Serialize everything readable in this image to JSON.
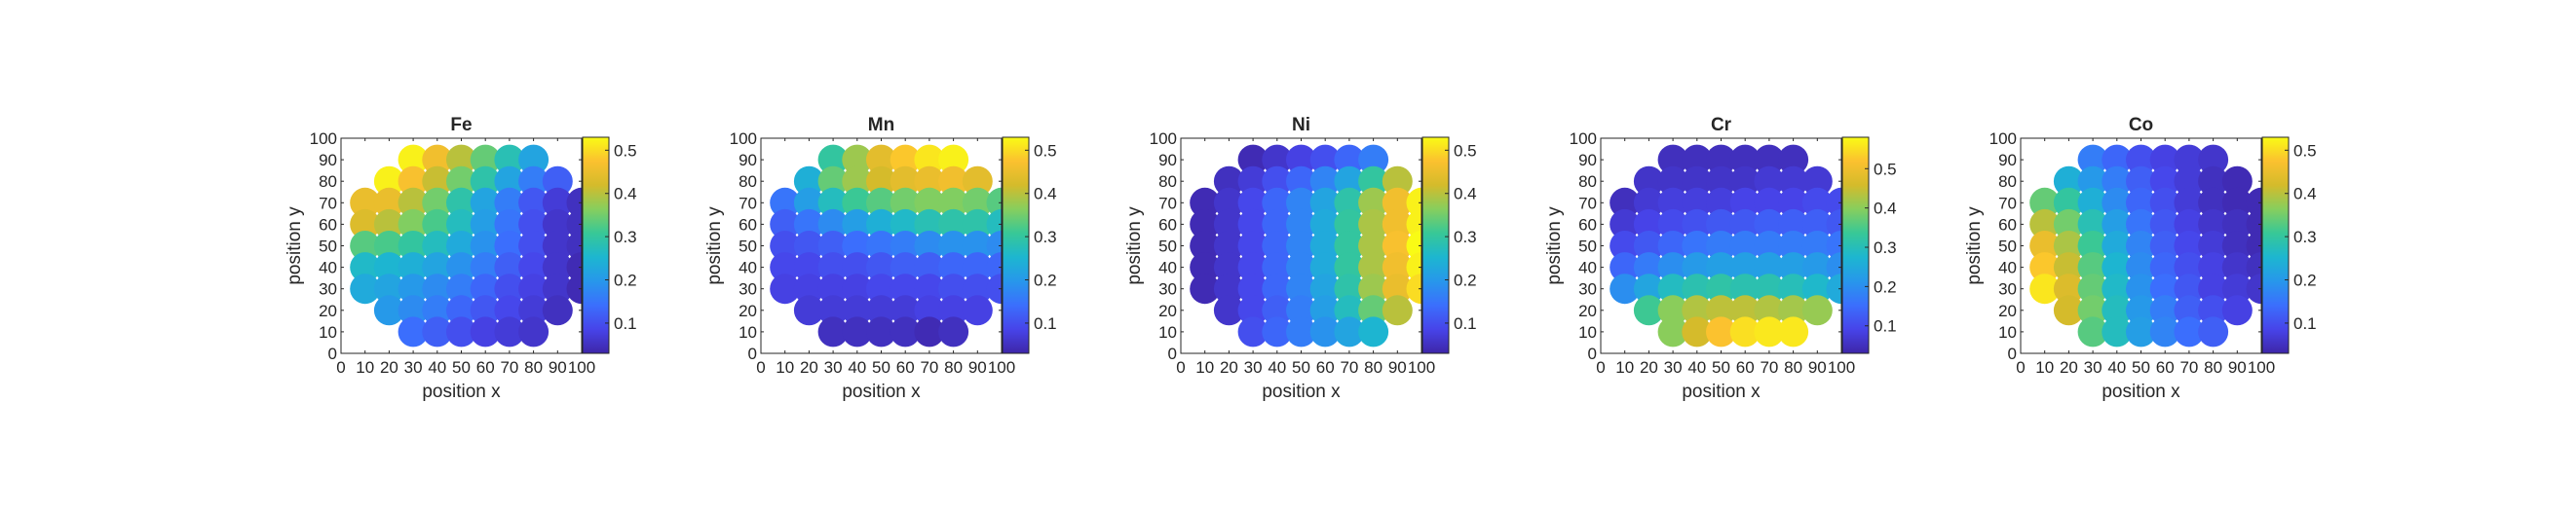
{
  "colormap": [
    "#3e26a8",
    "#4744e9",
    "#3b6ffd",
    "#2797eb",
    "#1db6d0",
    "#37c897",
    "#86ce5e",
    "#d4bb2b",
    "#fbc12f",
    "#f9fb15"
  ],
  "chart_data": [
    {
      "type": "scatter",
      "title": "Fe",
      "xlabel": "position x",
      "ylabel": "position y",
      "xlim": [
        0,
        100
      ],
      "ylim": [
        0,
        100
      ],
      "xticks": [
        "0",
        "10",
        "20",
        "30",
        "40",
        "50",
        "60",
        "70",
        "80",
        "90",
        "100"
      ],
      "yticks": [
        "0",
        "10",
        "20",
        "30",
        "40",
        "50",
        "60",
        "70",
        "80",
        "90",
        "100"
      ],
      "colorbar": {
        "ticks": [
          "0.1",
          "0.2",
          "0.3",
          "0.4",
          "0.5"
        ],
        "range": [
          0.03,
          0.53
        ]
      },
      "rows": [
        {
          "y": 90,
          "x_start": 30,
          "values": [
            0.52,
            0.46,
            0.4,
            0.34,
            0.28,
            0.22
          ]
        },
        {
          "y": 80,
          "x_start": 20,
          "values": [
            0.52,
            0.47,
            0.41,
            0.35,
            0.29,
            0.22,
            0.16,
            0.12
          ]
        },
        {
          "y": 70,
          "x_start": 10,
          "values": [
            0.45,
            0.45,
            0.4,
            0.35,
            0.29,
            0.22,
            0.16,
            0.11,
            0.07,
            0.05
          ]
        },
        {
          "y": 60,
          "x_start": 10,
          "values": [
            0.43,
            0.4,
            0.36,
            0.32,
            0.27,
            0.21,
            0.15,
            0.1,
            0.06,
            0.05
          ]
        },
        {
          "y": 50,
          "x_start": 10,
          "values": [
            0.33,
            0.32,
            0.3,
            0.27,
            0.23,
            0.19,
            0.14,
            0.1,
            0.06,
            0.05
          ]
        },
        {
          "y": 40,
          "x_start": 10,
          "values": [
            0.26,
            0.25,
            0.24,
            0.22,
            0.19,
            0.16,
            0.12,
            0.09,
            0.06,
            0.04
          ]
        },
        {
          "y": 30,
          "x_start": 10,
          "values": [
            0.23,
            0.22,
            0.2,
            0.18,
            0.16,
            0.13,
            0.1,
            0.08,
            0.06,
            0.04
          ]
        },
        {
          "y": 20,
          "x_start": 20,
          "values": [
            0.2,
            0.18,
            0.16,
            0.13,
            0.11,
            0.09,
            0.07,
            0.05
          ]
        },
        {
          "y": 10,
          "x_start": 30,
          "values": [
            0.14,
            0.12,
            0.1,
            0.08,
            0.07,
            0.06
          ]
        }
      ]
    },
    {
      "type": "scatter",
      "title": "Mn",
      "xlabel": "position x",
      "ylabel": "position y",
      "xlim": [
        0,
        100
      ],
      "ylim": [
        0,
        100
      ],
      "xticks": [
        "0",
        "10",
        "20",
        "30",
        "40",
        "50",
        "60",
        "70",
        "80",
        "90",
        "100"
      ],
      "yticks": [
        "0",
        "10",
        "20",
        "30",
        "40",
        "50",
        "60",
        "70",
        "80",
        "90",
        "100"
      ],
      "colorbar": {
        "ticks": [
          "0.1",
          "0.2",
          "0.3",
          "0.4",
          "0.5"
        ],
        "range": [
          0.03,
          0.53
        ]
      },
      "rows": [
        {
          "y": 90,
          "x_start": 30,
          "values": [
            0.3,
            0.38,
            0.44,
            0.48,
            0.51,
            0.52
          ]
        },
        {
          "y": 80,
          "x_start": 20,
          "values": [
            0.24,
            0.34,
            0.38,
            0.42,
            0.44,
            0.45,
            0.46,
            0.44
          ]
        },
        {
          "y": 70,
          "x_start": 10,
          "values": [
            0.15,
            0.21,
            0.27,
            0.31,
            0.33,
            0.35,
            0.36,
            0.36,
            0.35,
            0.33
          ]
        },
        {
          "y": 60,
          "x_start": 10,
          "values": [
            0.12,
            0.15,
            0.18,
            0.21,
            0.24,
            0.26,
            0.28,
            0.29,
            0.29,
            0.27
          ]
        },
        {
          "y": 50,
          "x_start": 10,
          "values": [
            0.1,
            0.11,
            0.12,
            0.14,
            0.15,
            0.16,
            0.18,
            0.19,
            0.19,
            0.18
          ]
        },
        {
          "y": 40,
          "x_start": 10,
          "values": [
            0.09,
            0.09,
            0.1,
            0.1,
            0.11,
            0.12,
            0.12,
            0.13,
            0.13,
            0.13
          ]
        },
        {
          "y": 30,
          "x_start": 10,
          "values": [
            0.08,
            0.08,
            0.08,
            0.08,
            0.09,
            0.09,
            0.09,
            0.1,
            0.1,
            0.1
          ]
        },
        {
          "y": 20,
          "x_start": 20,
          "values": [
            0.07,
            0.07,
            0.07,
            0.07,
            0.07,
            0.08,
            0.08,
            0.08
          ]
        },
        {
          "y": 10,
          "x_start": 30,
          "values": [
            0.05,
            0.05,
            0.05,
            0.05,
            0.04,
            0.05
          ]
        }
      ]
    },
    {
      "type": "scatter",
      "title": "Ni",
      "xlabel": "position x",
      "ylabel": "position y",
      "xlim": [
        0,
        100
      ],
      "ylim": [
        0,
        100
      ],
      "xticks": [
        "0",
        "10",
        "20",
        "30",
        "40",
        "50",
        "60",
        "70",
        "80",
        "90",
        "100"
      ],
      "yticks": [
        "0",
        "10",
        "20",
        "30",
        "40",
        "50",
        "60",
        "70",
        "80",
        "90",
        "100"
      ],
      "colorbar": {
        "ticks": [
          "0.1",
          "0.2",
          "0.3",
          "0.4",
          "0.5"
        ],
        "range": [
          0.03,
          0.53
        ]
      },
      "rows": [
        {
          "y": 90,
          "x_start": 30,
          "values": [
            0.04,
            0.06,
            0.08,
            0.1,
            0.13,
            0.16
          ]
        },
        {
          "y": 80,
          "x_start": 20,
          "values": [
            0.05,
            0.07,
            0.1,
            0.13,
            0.17,
            0.22,
            0.3,
            0.4
          ]
        },
        {
          "y": 70,
          "x_start": 10,
          "values": [
            0.04,
            0.06,
            0.09,
            0.13,
            0.17,
            0.22,
            0.29,
            0.38,
            0.46,
            0.52
          ]
        },
        {
          "y": 60,
          "x_start": 10,
          "values": [
            0.04,
            0.06,
            0.09,
            0.13,
            0.17,
            0.23,
            0.3,
            0.39,
            0.46,
            0.52
          ]
        },
        {
          "y": 50,
          "x_start": 10,
          "values": [
            0.04,
            0.06,
            0.09,
            0.13,
            0.17,
            0.23,
            0.3,
            0.39,
            0.47,
            0.53
          ]
        },
        {
          "y": 40,
          "x_start": 10,
          "values": [
            0.04,
            0.06,
            0.09,
            0.13,
            0.17,
            0.23,
            0.3,
            0.39,
            0.46,
            0.52
          ]
        },
        {
          "y": 30,
          "x_start": 10,
          "values": [
            0.04,
            0.06,
            0.09,
            0.13,
            0.17,
            0.22,
            0.29,
            0.38,
            0.45,
            0.5
          ]
        },
        {
          "y": 20,
          "x_start": 20,
          "values": [
            0.06,
            0.09,
            0.12,
            0.16,
            0.21,
            0.27,
            0.34,
            0.4
          ]
        },
        {
          "y": 10,
          "x_start": 30,
          "values": [
            0.1,
            0.13,
            0.16,
            0.19,
            0.22,
            0.25
          ]
        }
      ]
    },
    {
      "type": "scatter",
      "title": "Cr",
      "xlabel": "position x",
      "ylabel": "position y",
      "xlim": [
        0,
        100
      ],
      "ylim": [
        0,
        100
      ],
      "xticks": [
        "0",
        "10",
        "20",
        "30",
        "40",
        "50",
        "60",
        "70",
        "80",
        "90",
        "100"
      ],
      "yticks": [
        "0",
        "10",
        "20",
        "30",
        "40",
        "50",
        "60",
        "70",
        "80",
        "90",
        "100"
      ],
      "colorbar": {
        "ticks": [
          "0.1",
          "0.2",
          "0.3",
          "0.4",
          "0.5"
        ],
        "range": [
          0.03,
          0.58
        ]
      },
      "rows": [
        {
          "y": 90,
          "x_start": 30,
          "values": [
            0.05,
            0.05,
            0.05,
            0.05,
            0.05,
            0.05
          ]
        },
        {
          "y": 80,
          "x_start": 20,
          "values": [
            0.06,
            0.06,
            0.06,
            0.06,
            0.06,
            0.07,
            0.07,
            0.07
          ]
        },
        {
          "y": 70,
          "x_start": 10,
          "values": [
            0.05,
            0.07,
            0.08,
            0.08,
            0.08,
            0.09,
            0.09,
            0.09,
            0.1,
            0.1
          ]
        },
        {
          "y": 60,
          "x_start": 10,
          "values": [
            0.07,
            0.09,
            0.1,
            0.11,
            0.12,
            0.12,
            0.13,
            0.13,
            0.13,
            0.12
          ]
        },
        {
          "y": 50,
          "x_start": 10,
          "values": [
            0.1,
            0.12,
            0.14,
            0.16,
            0.17,
            0.17,
            0.17,
            0.17,
            0.17,
            0.16
          ]
        },
        {
          "y": 40,
          "x_start": 10,
          "values": [
            0.14,
            0.17,
            0.2,
            0.22,
            0.23,
            0.23,
            0.23,
            0.23,
            0.22,
            0.2
          ]
        },
        {
          "y": 30,
          "x_start": 10,
          "values": [
            0.2,
            0.24,
            0.29,
            0.31,
            0.32,
            0.31,
            0.31,
            0.3,
            0.28,
            0.25
          ]
        },
        {
          "y": 20,
          "x_start": 20,
          "values": [
            0.34,
            0.4,
            0.43,
            0.44,
            0.44,
            0.43,
            0.42,
            0.41
          ]
        },
        {
          "y": 10,
          "x_start": 30,
          "values": [
            0.4,
            0.46,
            0.52,
            0.55,
            0.56,
            0.56
          ]
        }
      ]
    },
    {
      "type": "scatter",
      "title": "Co",
      "xlabel": "position x",
      "ylabel": "position y",
      "xlim": [
        0,
        100
      ],
      "ylim": [
        0,
        100
      ],
      "xticks": [
        "0",
        "10",
        "20",
        "30",
        "40",
        "50",
        "60",
        "70",
        "80",
        "90",
        "100"
      ],
      "yticks": [
        "0",
        "10",
        "20",
        "30",
        "40",
        "50",
        "60",
        "70",
        "80",
        "90",
        "100"
      ],
      "colorbar": {
        "ticks": [
          "0.1",
          "0.2",
          "0.3",
          "0.4",
          "0.5"
        ],
        "range": [
          0.03,
          0.53
        ]
      },
      "rows": [
        {
          "y": 90,
          "x_start": 30,
          "values": [
            0.16,
            0.13,
            0.1,
            0.08,
            0.07,
            0.06
          ]
        },
        {
          "y": 80,
          "x_start": 20,
          "values": [
            0.24,
            0.2,
            0.16,
            0.12,
            0.09,
            0.07,
            0.05,
            0.04
          ]
        },
        {
          "y": 70,
          "x_start": 10,
          "values": [
            0.34,
            0.3,
            0.24,
            0.18,
            0.13,
            0.1,
            0.07,
            0.05,
            0.04,
            0.04
          ]
        },
        {
          "y": 60,
          "x_start": 10,
          "values": [
            0.4,
            0.35,
            0.28,
            0.21,
            0.15,
            0.11,
            0.08,
            0.06,
            0.05,
            0.04
          ]
        },
        {
          "y": 50,
          "x_start": 10,
          "values": [
            0.45,
            0.39,
            0.31,
            0.23,
            0.17,
            0.12,
            0.09,
            0.07,
            0.05,
            0.04
          ]
        },
        {
          "y": 40,
          "x_start": 10,
          "values": [
            0.48,
            0.41,
            0.33,
            0.25,
            0.18,
            0.13,
            0.1,
            0.08,
            0.06,
            0.05
          ]
        },
        {
          "y": 30,
          "x_start": 10,
          "values": [
            0.51,
            0.43,
            0.34,
            0.26,
            0.19,
            0.14,
            0.11,
            0.08,
            0.07,
            0.06
          ]
        },
        {
          "y": 20,
          "x_start": 20,
          "values": [
            0.42,
            0.35,
            0.27,
            0.2,
            0.16,
            0.12,
            0.1,
            0.08
          ]
        },
        {
          "y": 10,
          "x_start": 30,
          "values": [
            0.33,
            0.27,
            0.21,
            0.17,
            0.14,
            0.12
          ]
        }
      ]
    }
  ]
}
